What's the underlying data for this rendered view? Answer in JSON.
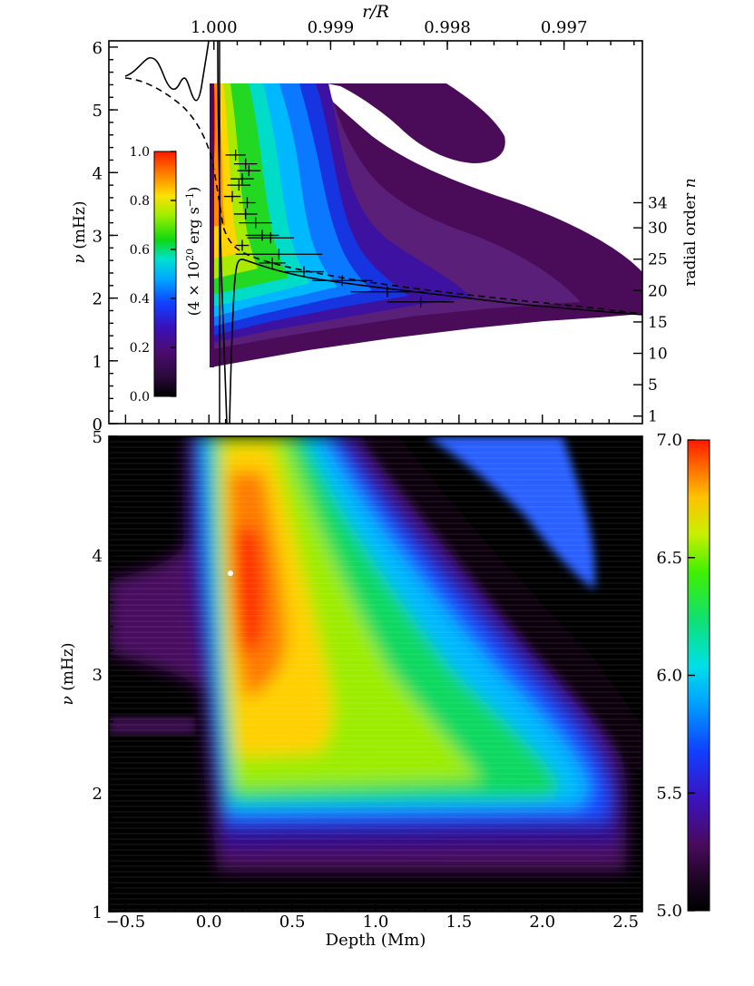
{
  "chart_data": [
    {
      "type": "contour",
      "panel": "top",
      "xlabel_top": "r/R",
      "ylabel_left": "ν (mHz)",
      "ylabel_right": "radial order n",
      "colorbar_label": "(4 × 10^20 erg s^-1)",
      "xlim": [
        -0.6,
        2.6
      ],
      "ylim": [
        0,
        6.1
      ],
      "top_ticks": [
        {
          "depth": 0.03,
          "label": "1.000"
        },
        {
          "depth": 0.73,
          "label": "0.999"
        },
        {
          "depth": 1.43,
          "label": "0.998"
        },
        {
          "depth": 2.13,
          "label": "0.997"
        }
      ],
      "y_ticks": [
        0,
        1,
        2,
        3,
        4,
        5,
        6
      ],
      "right_ticks": [
        {
          "n": "1",
          "nu": 0.12
        },
        {
          "n": "5",
          "nu": 0.62
        },
        {
          "n": "10",
          "nu": 1.12
        },
        {
          "n": "15",
          "nu": 1.62
        },
        {
          "n": "20",
          "nu": 2.12
        },
        {
          "n": "25",
          "nu": 2.62
        },
        {
          "n": "30",
          "nu": 3.12
        },
        {
          "n": "34",
          "nu": 3.52
        }
      ],
      "colorbar_ticks": [
        "0.0",
        "0.2",
        "0.4",
        "0.6",
        "0.8",
        "1.0"
      ],
      "colorbar_range": [
        0,
        1
      ],
      "data_points": [
        {
          "depth": 0.16,
          "nu": 4.28,
          "xerr": 0.06
        },
        {
          "depth": 0.22,
          "nu": 4.14,
          "xerr": 0.07
        },
        {
          "depth": 0.24,
          "nu": 4.03,
          "xerr": 0.07
        },
        {
          "depth": 0.2,
          "nu": 3.9,
          "xerr": 0.07
        },
        {
          "depth": 0.18,
          "nu": 3.8,
          "xerr": 0.07
        },
        {
          "depth": 0.14,
          "nu": 3.62,
          "xerr": 0.05
        },
        {
          "depth": 0.23,
          "nu": 3.52,
          "xerr": 0.05
        },
        {
          "depth": 0.22,
          "nu": 3.34,
          "xerr": 0.07
        },
        {
          "depth": 0.28,
          "nu": 3.2,
          "xerr": 0.1
        },
        {
          "depth": 0.32,
          "nu": 3.0,
          "xerr": 0.1
        },
        {
          "depth": 0.37,
          "nu": 2.96,
          "xerr": 0.14
        },
        {
          "depth": 0.2,
          "nu": 2.84,
          "xerr": 0.04
        },
        {
          "depth": 0.42,
          "nu": 2.7,
          "xerr": 0.26
        },
        {
          "depth": 0.38,
          "nu": 2.56,
          "xerr": 0.08
        },
        {
          "depth": 0.57,
          "nu": 2.42,
          "xerr": 0.12
        },
        {
          "depth": 0.8,
          "nu": 2.28,
          "xerr": 0.18
        },
        {
          "depth": 1.07,
          "nu": 2.1,
          "xerr": 0.22
        },
        {
          "depth": 1.27,
          "nu": 1.94,
          "xerr": 0.2
        }
      ]
    },
    {
      "type": "heatmap",
      "panel": "bottom",
      "xlabel": "Depth (Mm)",
      "ylabel": "ν (mHz)",
      "xlim": [
        -0.6,
        2.6
      ],
      "ylim": [
        1,
        5
      ],
      "x_ticks": [
        "−0.5",
        "0.0",
        "0.5",
        "1.0",
        "1.5",
        "2.0",
        "2.5"
      ],
      "x_tick_values": [
        -0.5,
        0,
        0.5,
        1,
        1.5,
        2,
        2.5
      ],
      "y_ticks": [
        1,
        2,
        3,
        4,
        5
      ],
      "colorbar_ticks": [
        "5.0",
        "5.5",
        "6.0",
        "6.5",
        "7.0"
      ],
      "colorbar_range": [
        5,
        7
      ]
    }
  ]
}
